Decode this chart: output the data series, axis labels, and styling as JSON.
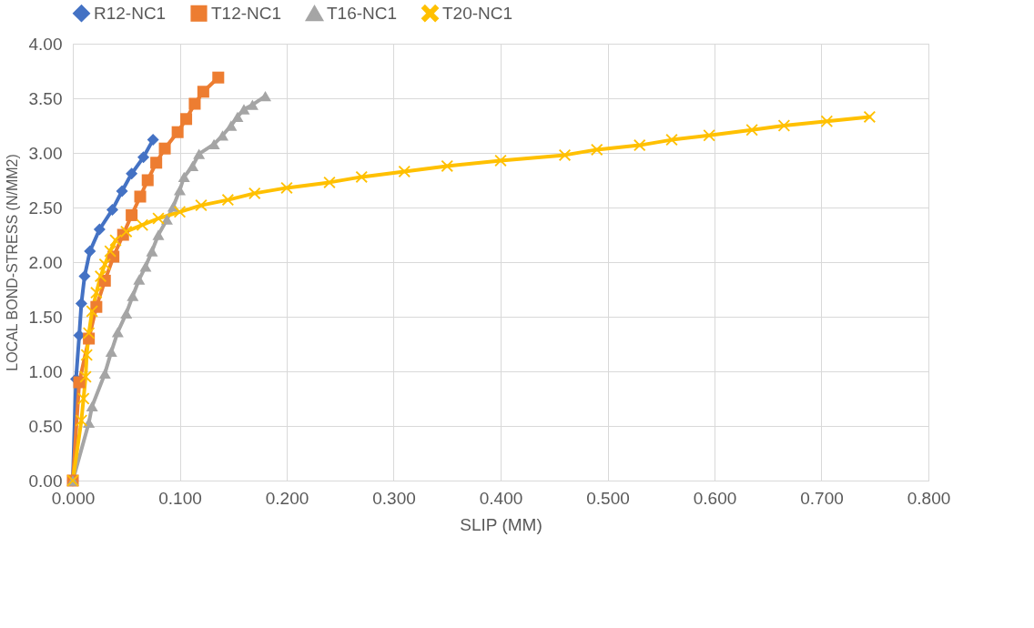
{
  "chart_data": {
    "type": "line",
    "xlabel": "SLIP (MM)",
    "ylabel": "LOCAL BOND-STRESS (N/MM2)",
    "xlim": [
      0,
      0.8
    ],
    "ylim": [
      0,
      4
    ],
    "xticks": [
      {
        "value": 0,
        "label": "0.000"
      },
      {
        "value": 0.1,
        "label": "0.100"
      },
      {
        "value": 0.2,
        "label": "0.200"
      },
      {
        "value": 0.3,
        "label": "0.300"
      },
      {
        "value": 0.4,
        "label": "0.400"
      },
      {
        "value": 0.5,
        "label": "0.500"
      },
      {
        "value": 0.6,
        "label": "0.600"
      },
      {
        "value": 0.7,
        "label": "0.700"
      },
      {
        "value": 0.8,
        "label": "0.800"
      }
    ],
    "yticks": [
      {
        "value": 0,
        "label": "0.00"
      },
      {
        "value": 0.5,
        "label": "0.50"
      },
      {
        "value": 1,
        "label": "1.00"
      },
      {
        "value": 1.5,
        "label": "1.50"
      },
      {
        "value": 2,
        "label": "2.00"
      },
      {
        "value": 2.5,
        "label": "2.50"
      },
      {
        "value": 3,
        "label": "3.00"
      },
      {
        "value": 3.5,
        "label": "3.50"
      },
      {
        "value": 4,
        "label": "4.00"
      }
    ],
    "grid": true,
    "legend": "top",
    "line_style": "solid",
    "series": [
      {
        "name": "R12-NC1",
        "color": "#4472c4",
        "marker": "diamond",
        "x": [
          0,
          0.003,
          0.006,
          0.008,
          0.011,
          0.016,
          0.025,
          0.037,
          0.046,
          0.055,
          0.066,
          0.075
        ],
        "values": [
          0,
          0.93,
          1.33,
          1.62,
          1.87,
          2.1,
          2.3,
          2.48,
          2.65,
          2.81,
          2.96,
          3.12
        ]
      },
      {
        "name": "T12-NC1",
        "color": "#ed7d31",
        "marker": "square",
        "x": [
          0,
          0.006,
          0.015,
          0.022,
          0.03,
          0.038,
          0.047,
          0.055,
          0.063,
          0.07,
          0.078,
          0.086,
          0.098,
          0.106,
          0.114,
          0.122,
          0.136
        ],
        "values": [
          0,
          0.9,
          1.3,
          1.59,
          1.83,
          2.05,
          2.25,
          2.43,
          2.6,
          2.75,
          2.91,
          3.04,
          3.19,
          3.31,
          3.45,
          3.56,
          3.69
        ]
      },
      {
        "name": "T16-NC1",
        "color": "#a5a5a5",
        "marker": "triangle",
        "x": [
          0,
          0.015,
          0.018,
          0.03,
          0.036,
          0.042,
          0.05,
          0.056,
          0.062,
          0.068,
          0.074,
          0.08,
          0.088,
          0.094,
          0.1,
          0.104,
          0.112,
          0.118,
          0.132,
          0.14,
          0.148,
          0.154,
          0.16,
          0.168,
          0.18
        ],
        "values": [
          0,
          0.53,
          0.68,
          0.98,
          1.18,
          1.36,
          1.53,
          1.69,
          1.84,
          1.96,
          2.1,
          2.25,
          2.39,
          2.51,
          2.66,
          2.78,
          2.88,
          2.99,
          3.08,
          3.16,
          3.25,
          3.33,
          3.4,
          3.44,
          3.52
        ]
      },
      {
        "name": "T20-NC1",
        "color": "#ffc000",
        "marker": "cross",
        "x": [
          0,
          0.008,
          0.01,
          0.012,
          0.013,
          0.015,
          0.018,
          0.022,
          0.026,
          0.03,
          0.035,
          0.04,
          0.05,
          0.065,
          0.08,
          0.1,
          0.12,
          0.145,
          0.17,
          0.2,
          0.24,
          0.27,
          0.31,
          0.35,
          0.4,
          0.46,
          0.49,
          0.53,
          0.56,
          0.595,
          0.635,
          0.665,
          0.705,
          0.745
        ],
        "values": [
          0,
          0.55,
          0.75,
          0.95,
          1.15,
          1.35,
          1.55,
          1.72,
          1.87,
          1.98,
          2.1,
          2.2,
          2.28,
          2.34,
          2.4,
          2.46,
          2.52,
          2.57,
          2.63,
          2.68,
          2.73,
          2.78,
          2.83,
          2.88,
          2.93,
          2.98,
          3.03,
          3.07,
          3.12,
          3.16,
          3.21,
          3.25,
          3.29,
          3.33
        ]
      }
    ]
  }
}
